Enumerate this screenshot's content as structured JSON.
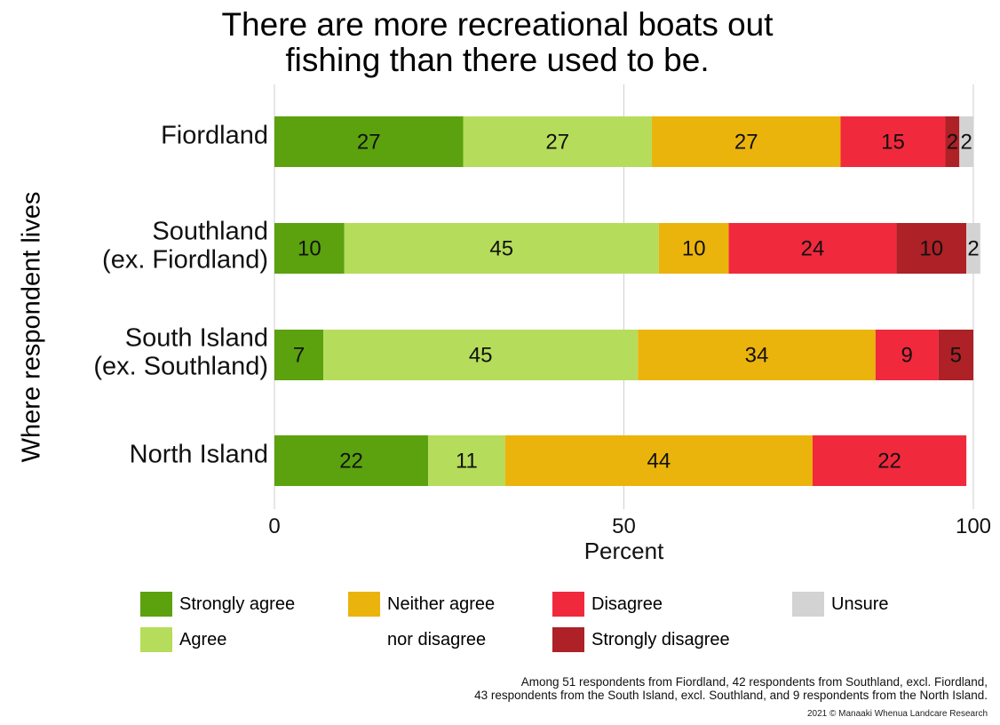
{
  "chart_data": {
    "type": "bar",
    "orientation": "horizontal",
    "stacked": true,
    "title": [
      "There are more recreational boats out",
      "fishing than there used to be."
    ],
    "xlabel": "Percent",
    "ylabel": "Where respondent lives",
    "xlim": [
      0,
      100
    ],
    "xticks": [
      0,
      50,
      100
    ],
    "grid": true,
    "categories": [
      [
        "Fiordland"
      ],
      [
        "Southland",
        "(ex. Fiordland)"
      ],
      [
        "South Island",
        "(ex. Southland)"
      ],
      [
        "North Island"
      ]
    ],
    "series": [
      {
        "name": "Strongly agree",
        "color": "#5ba20e",
        "values": [
          27,
          10,
          7,
          22
        ]
      },
      {
        "name": "Agree",
        "color": "#b6dc5b",
        "values": [
          27,
          45,
          45,
          11
        ]
      },
      {
        "name": "Neither agree nor disagree",
        "color": "#ebb40c",
        "values": [
          27,
          10,
          34,
          44
        ]
      },
      {
        "name": "Disagree",
        "color": "#f1293d",
        "values": [
          15,
          24,
          9,
          22
        ]
      },
      {
        "name": "Strongly disagree",
        "color": "#ad2127",
        "values": [
          2,
          10,
          5,
          0
        ]
      },
      {
        "name": "Unsure",
        "color": "#d3d3d3",
        "values": [
          2,
          2,
          0,
          0
        ]
      }
    ],
    "bar_labels": [
      [
        "27",
        "27",
        "27",
        "15",
        "2",
        "2"
      ],
      [
        "10",
        "45",
        "10",
        "24",
        "10",
        "2"
      ],
      [
        "7",
        "45",
        "34",
        "9",
        "5",
        ""
      ],
      [
        "22",
        "11",
        "44",
        "22",
        "",
        ""
      ]
    ],
    "legend": {
      "placement": "bottom",
      "items": [
        {
          "label": "Strongly agree",
          "color": "#5ba20e"
        },
        {
          "label": "Agree",
          "color": "#b6dc5b"
        },
        {
          "label": "Neither agree",
          "label_line2": "nor disagree",
          "color": "#ebb40c"
        },
        {
          "label": "Disagree",
          "color": "#f1293d"
        },
        {
          "label": "Strongly disagree",
          "color": "#ad2127"
        },
        {
          "label": "Unsure",
          "color": "#d3d3d3"
        }
      ]
    }
  },
  "footer": {
    "note_line1": "Among 51 respondents from Fiordland, 42 respondents from Southland, excl. Fiordland,",
    "note_line2": "43 respondents from the South Island, excl. Southland, and 9 respondents from the North Island.",
    "credit": "2021 © Manaaki Whenua Landcare Research"
  }
}
